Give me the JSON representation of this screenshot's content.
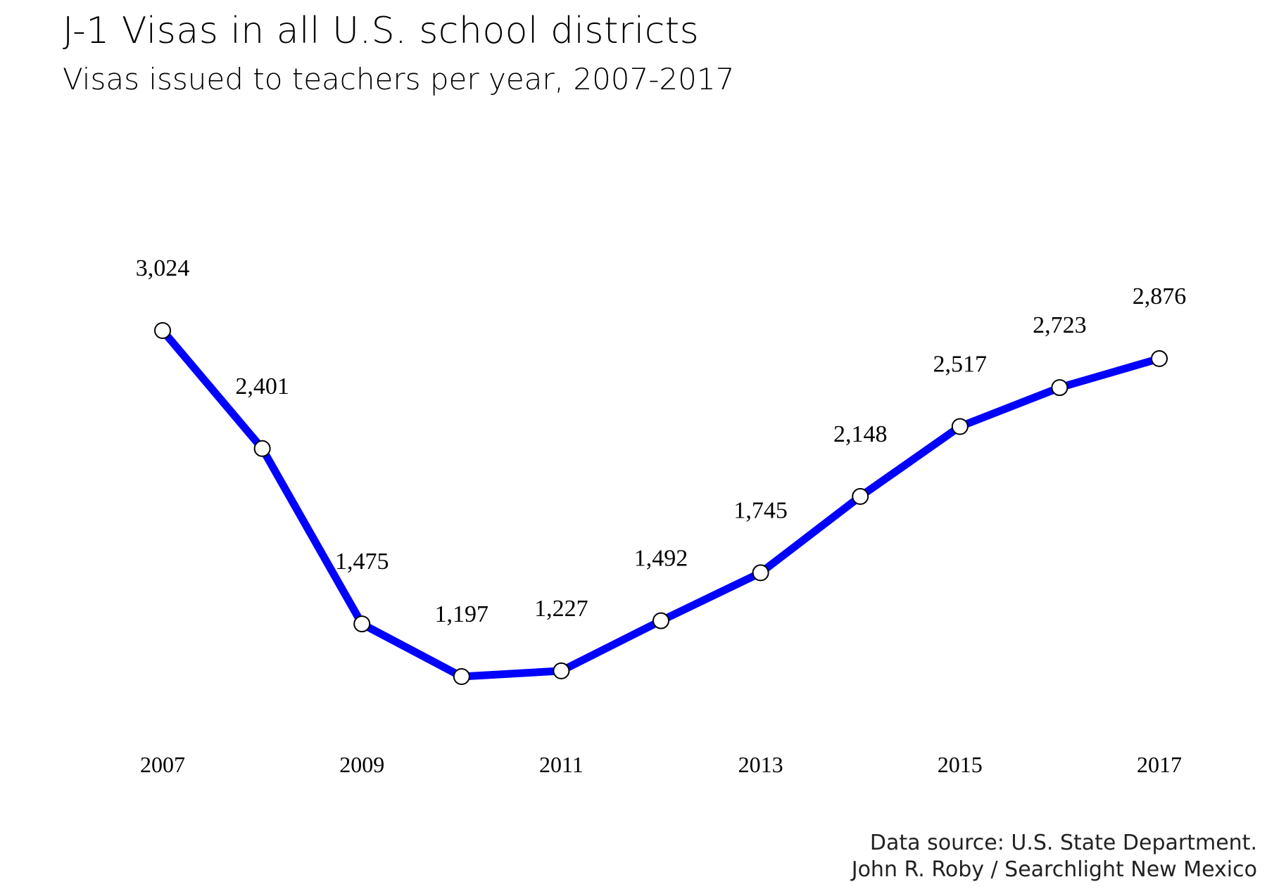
{
  "chart_data": {
    "type": "line",
    "title": "J-1 Visas in all U.S. school districts",
    "subtitle": "Visas issued to teachers per year, 2007-2017",
    "x": [
      2007,
      2008,
      2009,
      2010,
      2011,
      2012,
      2013,
      2014,
      2015,
      2016,
      2017
    ],
    "values": [
      3024,
      2401,
      1475,
      1197,
      1227,
      1492,
      1745,
      2148,
      2517,
      2723,
      2876
    ],
    "data_labels": [
      "3,024",
      "2,401",
      "1,475",
      "1,197",
      "1,227",
      "1,492",
      "1,745",
      "2,148",
      "2,517",
      "2,723",
      "2,876"
    ],
    "x_ticks": [
      "2007",
      "2009",
      "2011",
      "2013",
      "2015",
      "2017"
    ],
    "xlabel": "",
    "ylabel": "",
    "line_color": "#0000ff",
    "marker_fill": "#ffffff",
    "grid": false,
    "legend": "none"
  },
  "source": {
    "line1": "Data source: U.S. State Department.",
    "line2": "John R. Roby / Searchlight New Mexico"
  }
}
